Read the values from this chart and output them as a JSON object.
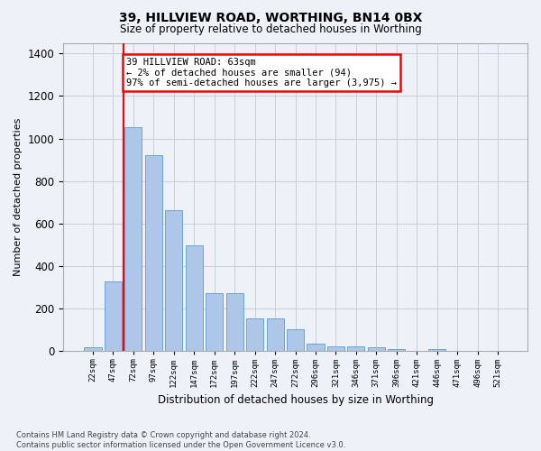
{
  "title": "39, HILLVIEW ROAD, WORTHING, BN14 0BX",
  "subtitle": "Size of property relative to detached houses in Worthing",
  "xlabel": "Distribution of detached houses by size in Worthing",
  "ylabel": "Number of detached properties",
  "categories": [
    "22sqm",
    "47sqm",
    "72sqm",
    "97sqm",
    "122sqm",
    "147sqm",
    "172sqm",
    "197sqm",
    "222sqm",
    "247sqm",
    "272sqm",
    "296sqm",
    "321sqm",
    "346sqm",
    "371sqm",
    "396sqm",
    "421sqm",
    "446sqm",
    "471sqm",
    "496sqm",
    "521sqm"
  ],
  "values": [
    20,
    330,
    1055,
    920,
    665,
    500,
    275,
    275,
    155,
    155,
    105,
    38,
    25,
    25,
    20,
    10,
    0,
    10,
    0,
    0,
    0
  ],
  "bar_color": "#aec6e8",
  "bar_edge_color": "#5b9bd5",
  "red_line_x": 1.5,
  "annotation_text": "39 HILLVIEW ROAD: 63sqm\n← 2% of detached houses are smaller (94)\n97% of semi-detached houses are larger (3,975) →",
  "annotation_box_color": "white",
  "annotation_box_edge": "red",
  "ylim": [
    0,
    1450
  ],
  "yticks": [
    0,
    200,
    400,
    600,
    800,
    1000,
    1200,
    1400
  ],
  "footer": "Contains HM Land Registry data © Crown copyright and database right 2024.\nContains public sector information licensed under the Open Government Licence v3.0.",
  "bg_color": "#eef2f8",
  "grid_color": "#c8cdd8"
}
